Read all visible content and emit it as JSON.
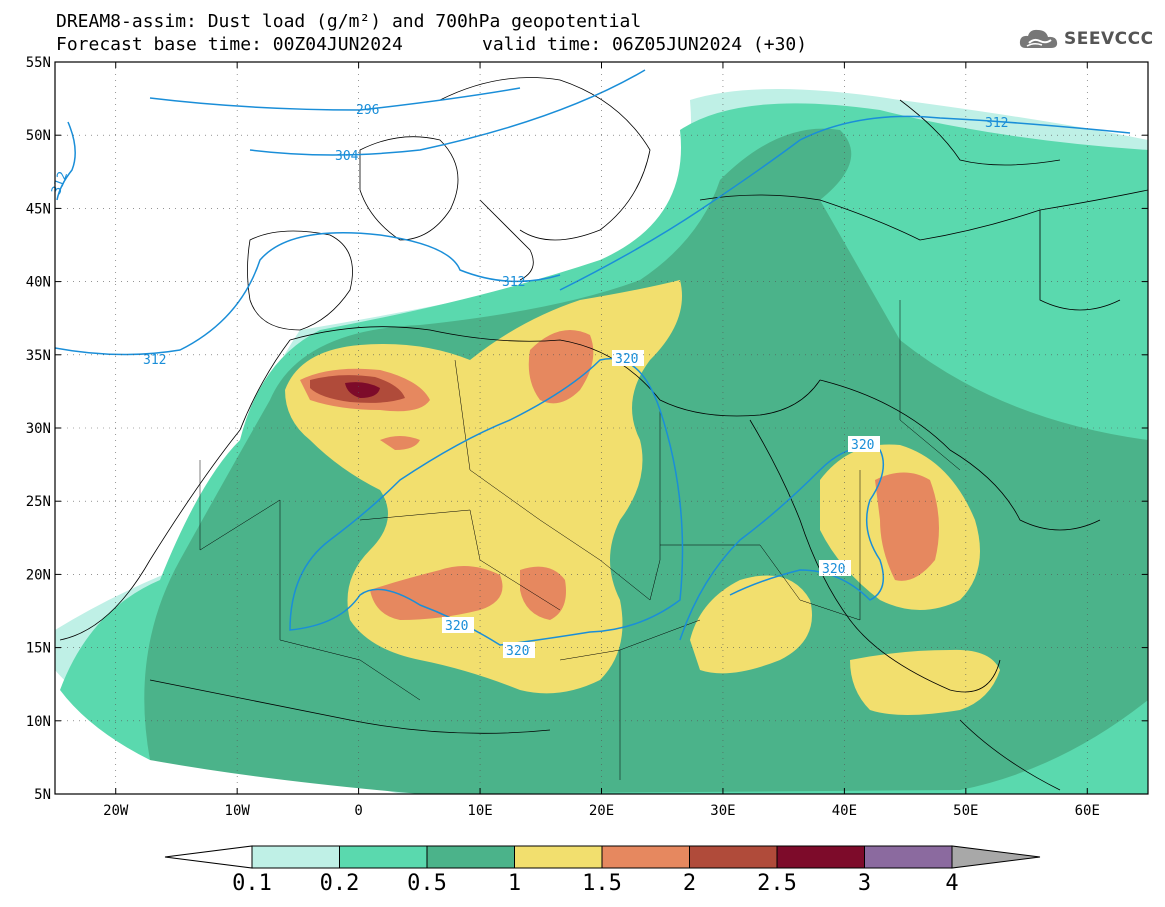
{
  "header": {
    "line1": "DREAM8-assim: Dust load (g/m²) and 700hPa geopotential",
    "base_time": "Forecast base time: 00Z04JUN2024",
    "valid_time": "valid time: 06Z05JUN2024 (+30)"
  },
  "logo": {
    "text": "SEEVCCC",
    "icon": "cloud-icon"
  },
  "map": {
    "lat_labels": [
      "55N",
      "50N",
      "45N",
      "40N",
      "35N",
      "30N",
      "25N",
      "20N",
      "15N",
      "10N",
      "5N"
    ],
    "lon_labels": [
      "20W",
      "10W",
      "0",
      "10E",
      "20E",
      "30E",
      "40E",
      "50E",
      "60E"
    ],
    "lat_values": [
      55,
      50,
      45,
      40,
      35,
      30,
      25,
      20,
      15,
      10,
      5
    ],
    "lon_values": [
      -20,
      -10,
      0,
      10,
      20,
      30,
      40,
      50,
      60
    ],
    "extent": {
      "lon_min": -25,
      "lon_max": 65,
      "lat_min": 5,
      "lat_max": 55
    },
    "contour_labels": [
      "296",
      "304",
      "312",
      "312",
      "312",
      "312",
      "320",
      "320",
      "320",
      "320",
      "320"
    ]
  },
  "colorbar": {
    "levels": [
      "0.1",
      "0.2",
      "0.5",
      "1",
      "1.5",
      "2",
      "2.5",
      "3",
      "4"
    ],
    "colors": [
      "#bff0e6",
      "#5ad9ae",
      "#4bb38a",
      "#f2df6e",
      "#e6885f",
      "#b04b3a",
      "#7d0b2a",
      "#8b6a9f"
    ],
    "under_color": "#ffffff",
    "over_color": "#a8a8a8"
  },
  "colors": {
    "contour": "#1a8ed8",
    "land_border": "#000000"
  }
}
